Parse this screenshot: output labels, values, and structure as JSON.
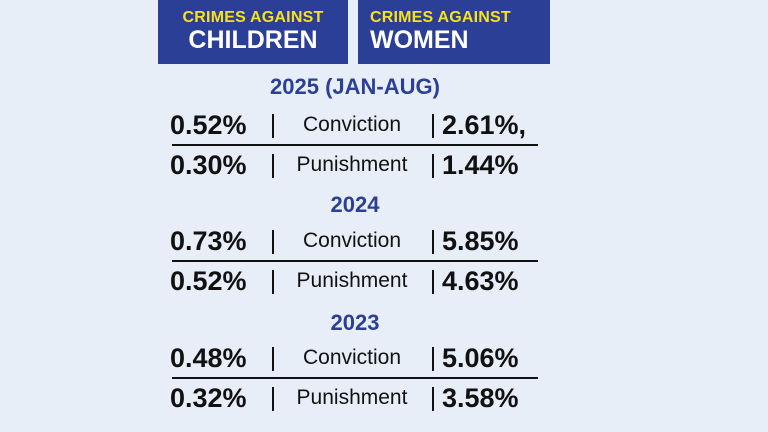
{
  "header": {
    "left": {
      "line1": "CRIMES AGAINST",
      "line2": "CHILDREN"
    },
    "right": {
      "line1": "CRIMES AGAINST",
      "line2": "WOMEN"
    }
  },
  "sections": [
    {
      "year": "2025 (JAN-AUG)",
      "rows": [
        {
          "children": "0.52%",
          "label": "Conviction",
          "women": "2.61%,"
        },
        {
          "children": "0.30%",
          "label": "Punishment",
          "women": "1.44%"
        }
      ]
    },
    {
      "year": "2024",
      "rows": [
        {
          "children": "0.73%",
          "label": "Conviction",
          "women": "5.85%"
        },
        {
          "children": "0.52%",
          "label": "Punishment",
          "women": "4.63%"
        }
      ]
    },
    {
      "year": "2023",
      "rows": [
        {
          "children": "0.48%",
          "label": "Conviction",
          "women": "5.06%"
        },
        {
          "children": "0.32%",
          "label": "Punishment",
          "women": "3.58%"
        }
      ]
    }
  ],
  "colors": {
    "background": "#e8eef8",
    "header_bg": "#2b3f97",
    "header_accent": "#f7e21b",
    "year_text": "#2b3f97"
  }
}
